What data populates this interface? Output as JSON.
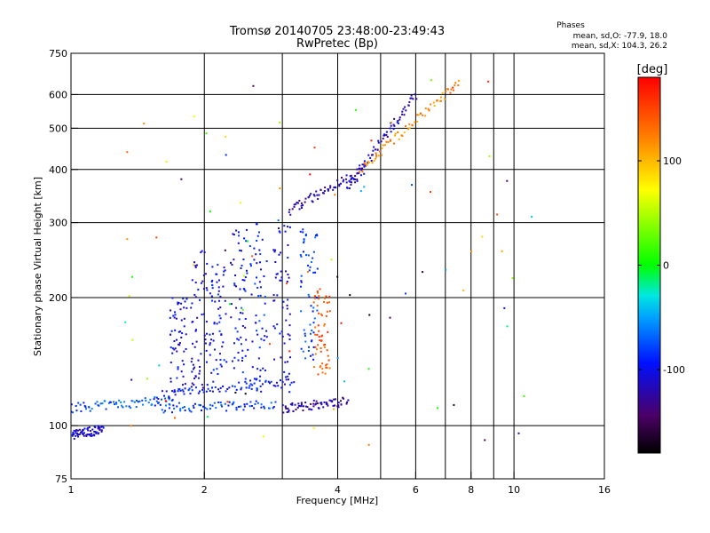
{
  "chart_data": {
    "type": "scatter",
    "title": "Tromsø 20140705 23:48:00-23:49:43",
    "subtitle": "RwPretec (Bp)",
    "xlabel": "Frequency [MHz]",
    "ylabel": "Stationary phase Virtual Height [km]",
    "x_scale": "log",
    "y_scale": "log",
    "xlim": [
      1,
      16
    ],
    "ylim": [
      75,
      750
    ],
    "x_ticks": [
      1,
      2,
      4,
      6,
      8,
      10,
      16
    ],
    "x_tick_labels": [
      "1",
      "2",
      "4",
      "6",
      "8",
      "10",
      "16"
    ],
    "x_minor_gridlines": [
      3,
      5,
      7,
      9
    ],
    "y_ticks": [
      75,
      100,
      200,
      300,
      400,
      500,
      600,
      750
    ],
    "y_tick_labels": [
      "75",
      "100",
      "200",
      "300",
      "400",
      "500",
      "600",
      "750"
    ],
    "grid": true,
    "stats": {
      "heading": "Phases",
      "o_line": "mean, sd,O: -77.9, 18.0",
      "x_line": "mean, sd,X: 104.3, 26.2"
    },
    "colorbar": {
      "label": "[deg]",
      "min": -180,
      "max": 180,
      "ticks": [
        100,
        0,
        -100
      ],
      "tick_labels": [
        "100",
        "0",
        "-100"
      ]
    },
    "series": [
      {
        "note_color_is_phase": true,
        "traces": [
          {
            "x0": 1.0,
            "x1": 1.18,
            "y0": 95,
            "y1": 98,
            "phase": -110
          },
          {
            "x0": 1.0,
            "x1": 1.7,
            "y0": 110,
            "y1": 115,
            "phase": -75
          },
          {
            "x0": 1.55,
            "x1": 3.2,
            "y0": 118,
            "y1": 128,
            "phase": -95
          },
          {
            "x0": 1.6,
            "x1": 2.9,
            "y0": 110,
            "y1": 112,
            "phase": -80
          },
          {
            "x0": 3.0,
            "x1": 4.2,
            "y0": 110,
            "y1": 114,
            "phase": -125
          },
          {
            "x0": 3.1,
            "x1": 4.6,
            "y0": 320,
            "y1": 400,
            "phase": -120
          },
          {
            "x0": 4.2,
            "x1": 6.0,
            "y0": 360,
            "y1": 600,
            "phase": -115
          },
          {
            "x0": 4.5,
            "x1": 7.5,
            "y0": 400,
            "y1": 640,
            "phase": 115
          }
        ],
        "columns": [
          {
            "x": 1.75,
            "ymin": 120,
            "ymax": 200,
            "phase": -105
          },
          {
            "x": 1.95,
            "ymin": 122,
            "ymax": 260,
            "phase": -110
          },
          {
            "x": 2.15,
            "ymin": 125,
            "ymax": 240,
            "phase": -95
          },
          {
            "x": 2.4,
            "ymin": 125,
            "ymax": 290,
            "phase": -100
          },
          {
            "x": 2.65,
            "ymin": 120,
            "ymax": 300,
            "phase": -90
          },
          {
            "x": 3.0,
            "ymin": 120,
            "ymax": 300,
            "phase": -105
          },
          {
            "x": 3.45,
            "ymin": 140,
            "ymax": 290,
            "phase": -80
          },
          {
            "x": 3.7,
            "ymin": 130,
            "ymax": 210,
            "phase": 140
          }
        ]
      }
    ]
  }
}
